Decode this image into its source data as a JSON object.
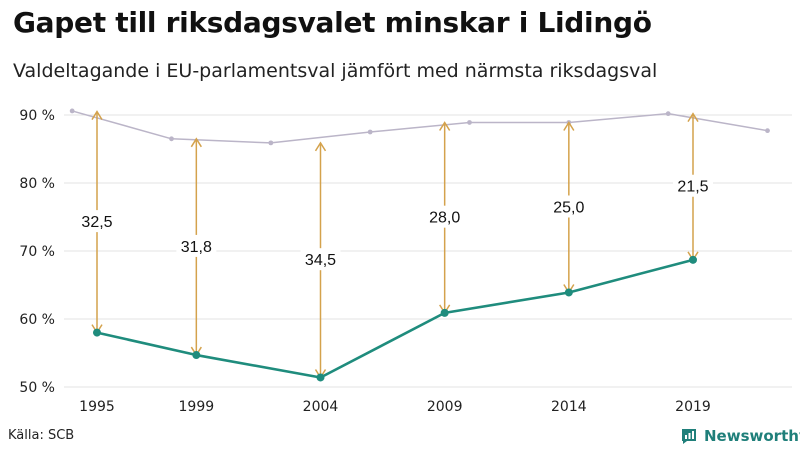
{
  "title": "Gapet till riksdagsvalet minskar i Lidingö",
  "subtitle": "Valdeltagande i EU-parlamentsval jämfört med närmsta riksdagsval",
  "source": "Källa: SCB",
  "brand": {
    "name": "Newsworthy",
    "icon": "bar-chart-logo-icon",
    "color": "#1f7f7a"
  },
  "chart_data": {
    "type": "line",
    "title": "Gapet till riksdagsvalet minskar i Lidingö",
    "subtitle": "Valdeltagande i EU-parlamentsval jämfört med närmsta riksdagsval",
    "ylim": [
      50,
      90
    ],
    "yticks": [
      50,
      60,
      70,
      80,
      90
    ],
    "ytick_labels": [
      "50 %",
      "60 %",
      "70 %",
      "80 %",
      "90 %"
    ],
    "xlim": [
      1995,
      2022
    ],
    "xticks": [
      1995,
      1999,
      2004,
      2009,
      2014,
      2019
    ],
    "grid": true,
    "legend": "none",
    "series": [
      {
        "role": "riksdag",
        "color": "#bbb5c8",
        "x": [
          1994,
          1998,
          2002,
          2006,
          2010,
          2014,
          2018,
          2022
        ],
        "y": [
          90.6,
          86.5,
          85.9,
          87.5,
          88.9,
          88.9,
          90.2,
          87.7
        ]
      },
      {
        "role": "eu",
        "color": "#1f8c7d",
        "x": [
          1995,
          1999,
          2004,
          2009,
          2014,
          2019
        ],
        "y": [
          58.0,
          54.7,
          51.4,
          60.9,
          63.9,
          68.7
        ]
      }
    ],
    "gaps": [
      {
        "x": 1995,
        "value": 32.5,
        "label": "32,5"
      },
      {
        "x": 1999,
        "value": 31.8,
        "label": "31,8"
      },
      {
        "x": 2004,
        "value": 34.5,
        "label": "34,5"
      },
      {
        "x": 2009,
        "value": 28.0,
        "label": "28,0"
      },
      {
        "x": 2014,
        "value": 25.0,
        "label": "25,0"
      },
      {
        "x": 2019,
        "value": 21.5,
        "label": "21,5"
      }
    ],
    "gap_color": "#d4a24c"
  }
}
